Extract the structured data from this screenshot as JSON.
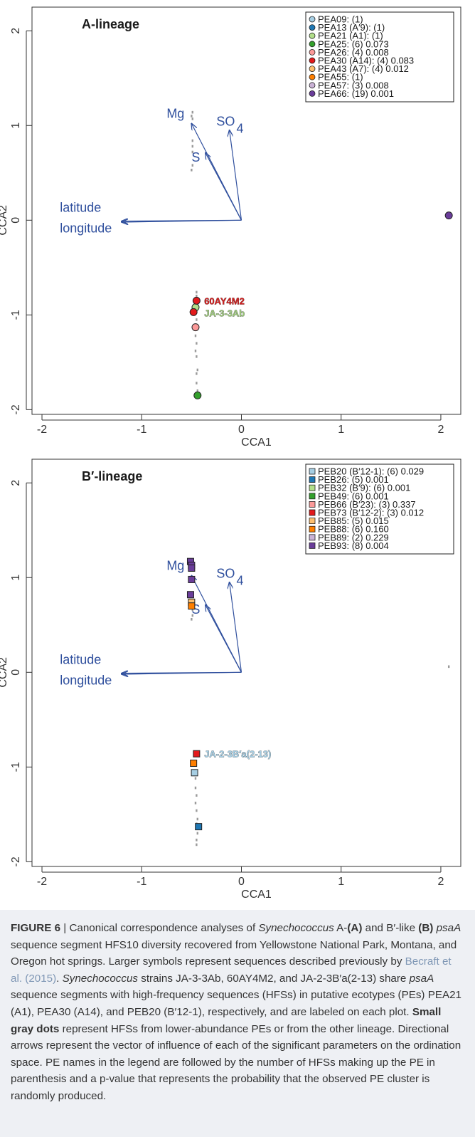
{
  "chart_data": [
    {
      "type": "scatter",
      "title": "A-lineage",
      "xlabel": "CCA1",
      "ylabel": "CCA2",
      "xlim": [
        -2.1,
        2.2
      ],
      "ylim": [
        -2.05,
        2.25
      ],
      "xticks": [
        -2,
        -1,
        0,
        1,
        2
      ],
      "xtick_labels": [
        "-2",
        "-1",
        "0",
        "1",
        "2"
      ],
      "yticks": [
        -2,
        -1,
        0,
        1,
        2
      ],
      "ytick_labels": [
        "-2",
        "-1",
        "0",
        "1",
        "2"
      ],
      "marker": "circle",
      "legend_position": "top-right",
      "arrows": [
        {
          "label": "Mg",
          "x": -0.5,
          "y": 1.02,
          "label_x": -0.75,
          "label_y": 1.08
        },
        {
          "label": "SO",
          "sub": "4",
          "x": -0.12,
          "y": 0.95,
          "label_x": -0.25,
          "label_y": 1.0
        },
        {
          "label": "S",
          "x": -0.36,
          "y": 0.71,
          "label_x": -0.5,
          "label_y": 0.62
        },
        {
          "label": "latitude",
          "x": -1.2,
          "y": -0.01,
          "label_x": -1.82,
          "label_y": 0.09
        },
        {
          "label": "longitude",
          "x": -1.2,
          "y": -0.02,
          "label_x": -1.82,
          "label_y": -0.13
        }
      ],
      "series": [
        {
          "name": "PEA09: (1)",
          "color": "#a6cee3",
          "points": []
        },
        {
          "name": "PEA13 (A′9): (1)",
          "color": "#1f78b4",
          "points": []
        },
        {
          "name": "PEA21 (A1): (1)",
          "color": "#b2df8a",
          "points": [
            {
              "x": -0.46,
              "y": -0.92
            }
          ]
        },
        {
          "name": "PEA25: (6) 0.073",
          "color": "#33a02c",
          "points": [
            {
              "x": -0.44,
              "y": -1.85
            }
          ]
        },
        {
          "name": "PEA26: (4) 0.008",
          "color": "#fb9a99",
          "points": [
            {
              "x": -0.46,
              "y": -1.13
            }
          ]
        },
        {
          "name": "PEA30 (A14): (4) 0.083",
          "color": "#e31a1c",
          "points": [
            {
              "x": -0.45,
              "y": -0.85
            },
            {
              "x": -0.48,
              "y": -0.97
            }
          ]
        },
        {
          "name": "PEA43 (A7): (4) 0.012",
          "color": "#fdbf6f",
          "points": []
        },
        {
          "name": "PEA55: (1)",
          "color": "#ff7f00",
          "points": []
        },
        {
          "name": "PEA57: (3) 0.008",
          "color": "#cab2d6",
          "points": []
        },
        {
          "name": "PEA66: (19) 0.001",
          "color": "#6a3d9a",
          "points": [
            {
              "x": 2.08,
              "y": 0.05
            }
          ]
        }
      ],
      "gray_points": [
        {
          "x": -0.49,
          "y": 1.14
        },
        {
          "x": -0.5,
          "y": 1.1
        },
        {
          "x": -0.49,
          "y": 1.07
        },
        {
          "x": -0.49,
          "y": 0.84
        },
        {
          "x": -0.49,
          "y": 0.78
        },
        {
          "x": -0.49,
          "y": 0.72
        },
        {
          "x": -0.49,
          "y": 0.58
        },
        {
          "x": -0.5,
          "y": 0.53
        },
        {
          "x": -0.45,
          "y": -0.76
        },
        {
          "x": -0.45,
          "y": -0.8
        },
        {
          "x": -0.45,
          "y": -1.05
        },
        {
          "x": -0.46,
          "y": -1.22
        },
        {
          "x": -0.45,
          "y": -1.3
        },
        {
          "x": -0.46,
          "y": -1.38
        },
        {
          "x": -0.45,
          "y": -1.44
        },
        {
          "x": -0.44,
          "y": -1.58
        },
        {
          "x": -0.45,
          "y": -1.62
        },
        {
          "x": -0.45,
          "y": -1.72
        },
        {
          "x": -0.44,
          "y": -1.8
        }
      ],
      "annotations": [
        {
          "text": "60AY4M2",
          "x": -0.43,
          "y": -0.85,
          "color": "#d42020"
        },
        {
          "text": "JA-3-3Ab",
          "x": -0.43,
          "y": -0.98,
          "color": "#9bc67a"
        }
      ]
    },
    {
      "type": "scatter",
      "title": "B′-lineage",
      "xlabel": "CCA1",
      "ylabel": "CCA2",
      "xlim": [
        -2.1,
        2.2
      ],
      "ylim": [
        -2.05,
        2.25
      ],
      "xticks": [
        -2,
        -1,
        0,
        1,
        2
      ],
      "xtick_labels": [
        "-2",
        "-1",
        "0",
        "1",
        "2"
      ],
      "yticks": [
        -2,
        -1,
        0,
        1,
        2
      ],
      "ytick_labels": [
        "-2",
        "-1",
        "0",
        "1",
        "2"
      ],
      "marker": "square",
      "legend_position": "top-right",
      "arrows": [
        {
          "label": "Mg",
          "x": -0.5,
          "y": 1.02,
          "label_x": -0.75,
          "label_y": 1.08
        },
        {
          "label": "SO",
          "sub": "4",
          "x": -0.12,
          "y": 0.95,
          "label_x": -0.25,
          "label_y": 1.0
        },
        {
          "label": "S",
          "x": -0.36,
          "y": 0.71,
          "label_x": -0.5,
          "label_y": 0.62
        },
        {
          "label": "latitude",
          "x": -1.2,
          "y": -0.01,
          "label_x": -1.82,
          "label_y": 0.09
        },
        {
          "label": "longitude",
          "x": -1.2,
          "y": -0.02,
          "label_x": -1.82,
          "label_y": -0.13
        }
      ],
      "series": [
        {
          "name": "PEB20 (B′12-1): (6) 0.029",
          "color": "#a6cee3",
          "points": [
            {
              "x": -0.47,
              "y": -1.06
            }
          ]
        },
        {
          "name": "PEB26: (5) 0.001",
          "color": "#1f78b4",
          "points": [
            {
              "x": -0.43,
              "y": -1.63
            }
          ]
        },
        {
          "name": "PEB32 (B′9): (6) 0.001",
          "color": "#b2df8a",
          "points": []
        },
        {
          "name": "PEB49: (6) 0.001",
          "color": "#33a02c",
          "points": []
        },
        {
          "name": "PEB66 (B′23): (3) 0.337",
          "color": "#fb9a99",
          "points": []
        },
        {
          "name": "PEB73 (B′12-2): (3) 0.012",
          "color": "#e31a1c",
          "points": [
            {
              "x": -0.45,
              "y": -0.86
            }
          ]
        },
        {
          "name": "PEB85: (5) 0.015",
          "color": "#fdbf6f",
          "points": [
            {
              "x": -0.5,
              "y": 0.74
            }
          ]
        },
        {
          "name": "PEB88: (6) 0.160",
          "color": "#ff7f00",
          "points": [
            {
              "x": -0.5,
              "y": 0.7
            },
            {
              "x": -0.48,
              "y": -0.96
            }
          ]
        },
        {
          "name": "PEB89: (2) 0.229",
          "color": "#cab2d6",
          "points": []
        },
        {
          "name": "PEB93: (8) 0.004",
          "color": "#6a3d9a",
          "points": [
            {
              "x": -0.51,
              "y": 1.17
            },
            {
              "x": -0.5,
              "y": 1.13
            },
            {
              "x": -0.5,
              "y": 1.1
            },
            {
              "x": -0.5,
              "y": 0.98
            },
            {
              "x": -0.51,
              "y": 0.82
            }
          ]
        }
      ],
      "gray_points": [
        {
          "x": -0.49,
          "y": 0.66
        },
        {
          "x": -0.49,
          "y": 0.6
        },
        {
          "x": -0.5,
          "y": 0.56
        },
        {
          "x": -0.46,
          "y": -1.12
        },
        {
          "x": -0.46,
          "y": -1.22
        },
        {
          "x": -0.45,
          "y": -1.3
        },
        {
          "x": -0.46,
          "y": -1.38
        },
        {
          "x": -0.45,
          "y": -1.46
        },
        {
          "x": -0.44,
          "y": -1.55
        },
        {
          "x": -0.45,
          "y": -1.6
        },
        {
          "x": -0.44,
          "y": -1.7
        },
        {
          "x": -0.45,
          "y": -1.77
        },
        {
          "x": -0.45,
          "y": -1.82
        },
        {
          "x": 2.08,
          "y": 0.06
        }
      ],
      "annotations": [
        {
          "text": "JA-2-3B′a(2-13)",
          "x": -0.43,
          "y": -0.86,
          "color": "#a6cee3"
        }
      ]
    }
  ],
  "caption": {
    "label": "FIGURE 6",
    "sep": " | ",
    "t1": "Canonical correspondence analyses of ",
    "i1": "Synechococcus",
    "t2": " A-",
    "b1": "(A)",
    "t3": " and B′-like ",
    "b2": "(B)",
    "t4": " ",
    "i2": "psaA",
    "t5": " sequence segment HFS10 diversity recovered from Yellowstone National Park, Montana, and Oregon hot springs. Larger symbols represent sequences described previously by ",
    "cite": "Becraft et al. (2015)",
    "t6": ". ",
    "i3": "Synechococcus",
    "t7": " strains JA-3-3Ab, 60AY4M2, and JA-2-3B′a(2-13) share ",
    "i4": "psaA",
    "t8": " sequence segments with high-frequency sequences (HFSs) in putative ecotypes (PEs) PEA21 (A1), PEA30 (A14), and PEB20 (B′12-1), respectively, and are labeled on each plot. ",
    "b3": "Small gray dots",
    "t9": " represent HFSs from lower-abundance PEs or from the other lineage. Directional arrows represent the vector of influence of each of the significant parameters on the ordination space. PE names in the legend are followed by the number of HFSs making up the PE in parenthesis and a p-value that represents the probability that the observed PE cluster is randomly produced."
  }
}
